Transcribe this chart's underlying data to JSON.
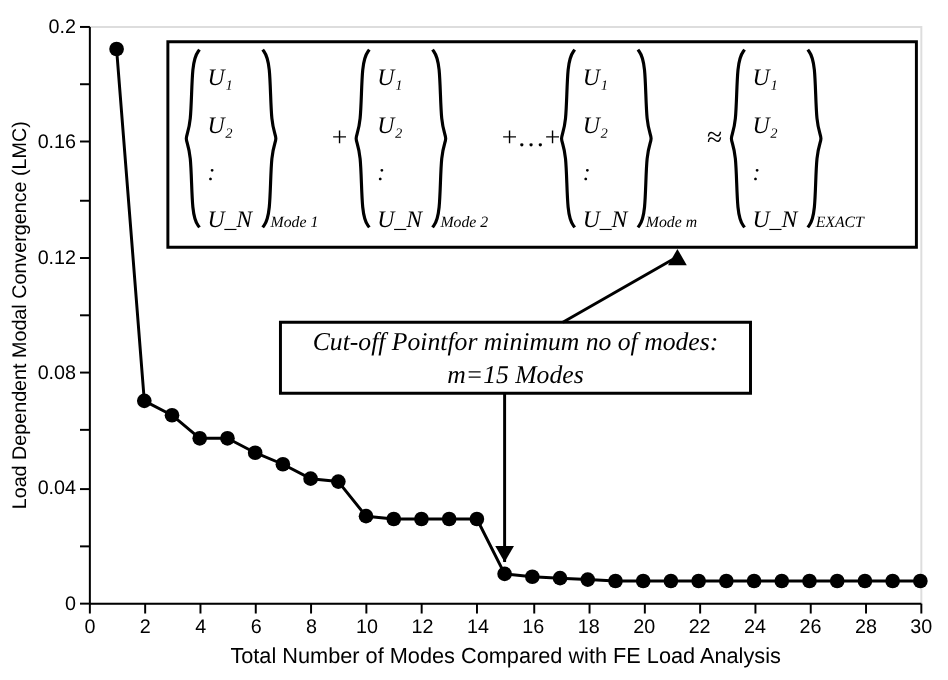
{
  "chart_data": {
    "type": "line",
    "xlabel": "Total Number of Modes Compared with FE Load Analysis",
    "ylabel": "Load Dependent Modal Convergence (LMC)",
    "x": [
      1,
      2,
      3,
      4,
      5,
      6,
      7,
      8,
      9,
      10,
      11,
      12,
      13,
      14,
      15,
      16,
      17,
      18,
      19,
      20,
      21,
      22,
      23,
      24,
      25,
      26,
      27,
      28,
      29,
      30
    ],
    "series": [
      {
        "color": "#000000",
        "values": [
          0.192,
          0.07,
          0.065,
          0.057,
          0.057,
          0.052,
          0.048,
          0.043,
          0.042,
          0.03,
          0.029,
          0.029,
          0.029,
          0.029,
          0.01,
          0.009,
          0.0085,
          0.008,
          0.0075,
          0.0075,
          0.0075,
          0.0075,
          0.0075,
          0.0075,
          0.0075,
          0.0075,
          0.0075,
          0.0075,
          0.0075,
          0.0075
        ]
      }
    ],
    "xlim": [
      0,
      30
    ],
    "xticks": [
      0,
      2,
      4,
      6,
      8,
      10,
      12,
      14,
      16,
      18,
      20,
      22,
      24,
      26,
      28,
      30
    ],
    "ylim": [
      0,
      0.2
    ],
    "yticks": [
      0,
      {
        "value": 0.02,
        "label": null
      },
      0.04,
      {
        "value": 0.06,
        "label": null
      },
      0.08,
      {
        "value": 0.1,
        "label": null
      },
      0.12,
      {
        "value": 0.14,
        "label": null
      },
      0.16,
      {
        "value": 0.18,
        "label": null
      },
      0.2
    ],
    "marker": "circle",
    "line_style": "solid",
    "grid": false,
    "annotations": [
      "U₁",
      "U₂",
      ":",
      "U_N",
      "Mode 1",
      "+",
      "U₁",
      "U₂",
      ":",
      "U_N",
      "Mode 2",
      "+…+",
      "U₁",
      "U₂",
      ":",
      "U_N",
      "Mode  m",
      "≈",
      "U₁",
      "U₂",
      ":",
      "U_N",
      "EXACT",
      {
        "text": "Cut-off Pointfor minimum no of modes:\nm=15 Modes",
        "x": 15,
        "y": 0.01
      }
    ]
  }
}
